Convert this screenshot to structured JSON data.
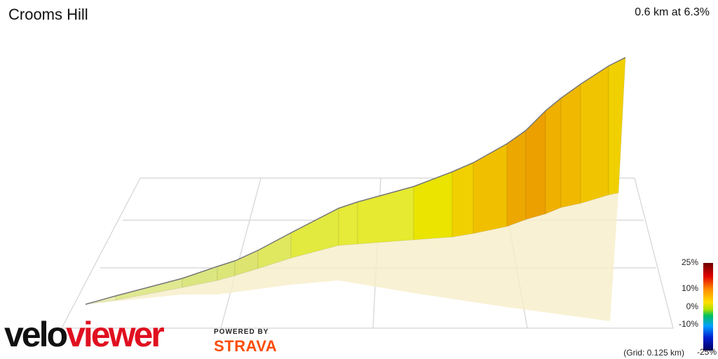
{
  "header": {
    "title": "Crooms Hill",
    "summary": "0.6 km at 6.3%"
  },
  "legend": {
    "ticks": [
      "25%",
      "10%",
      "0%",
      "-10%",
      "-25%"
    ],
    "grid_note": "(Grid: 0.125 km)"
  },
  "branding": {
    "logo_left": "velo",
    "logo_right": "viewer",
    "powered_by": "POWERED BY",
    "strava": "STRAVA"
  }
}
